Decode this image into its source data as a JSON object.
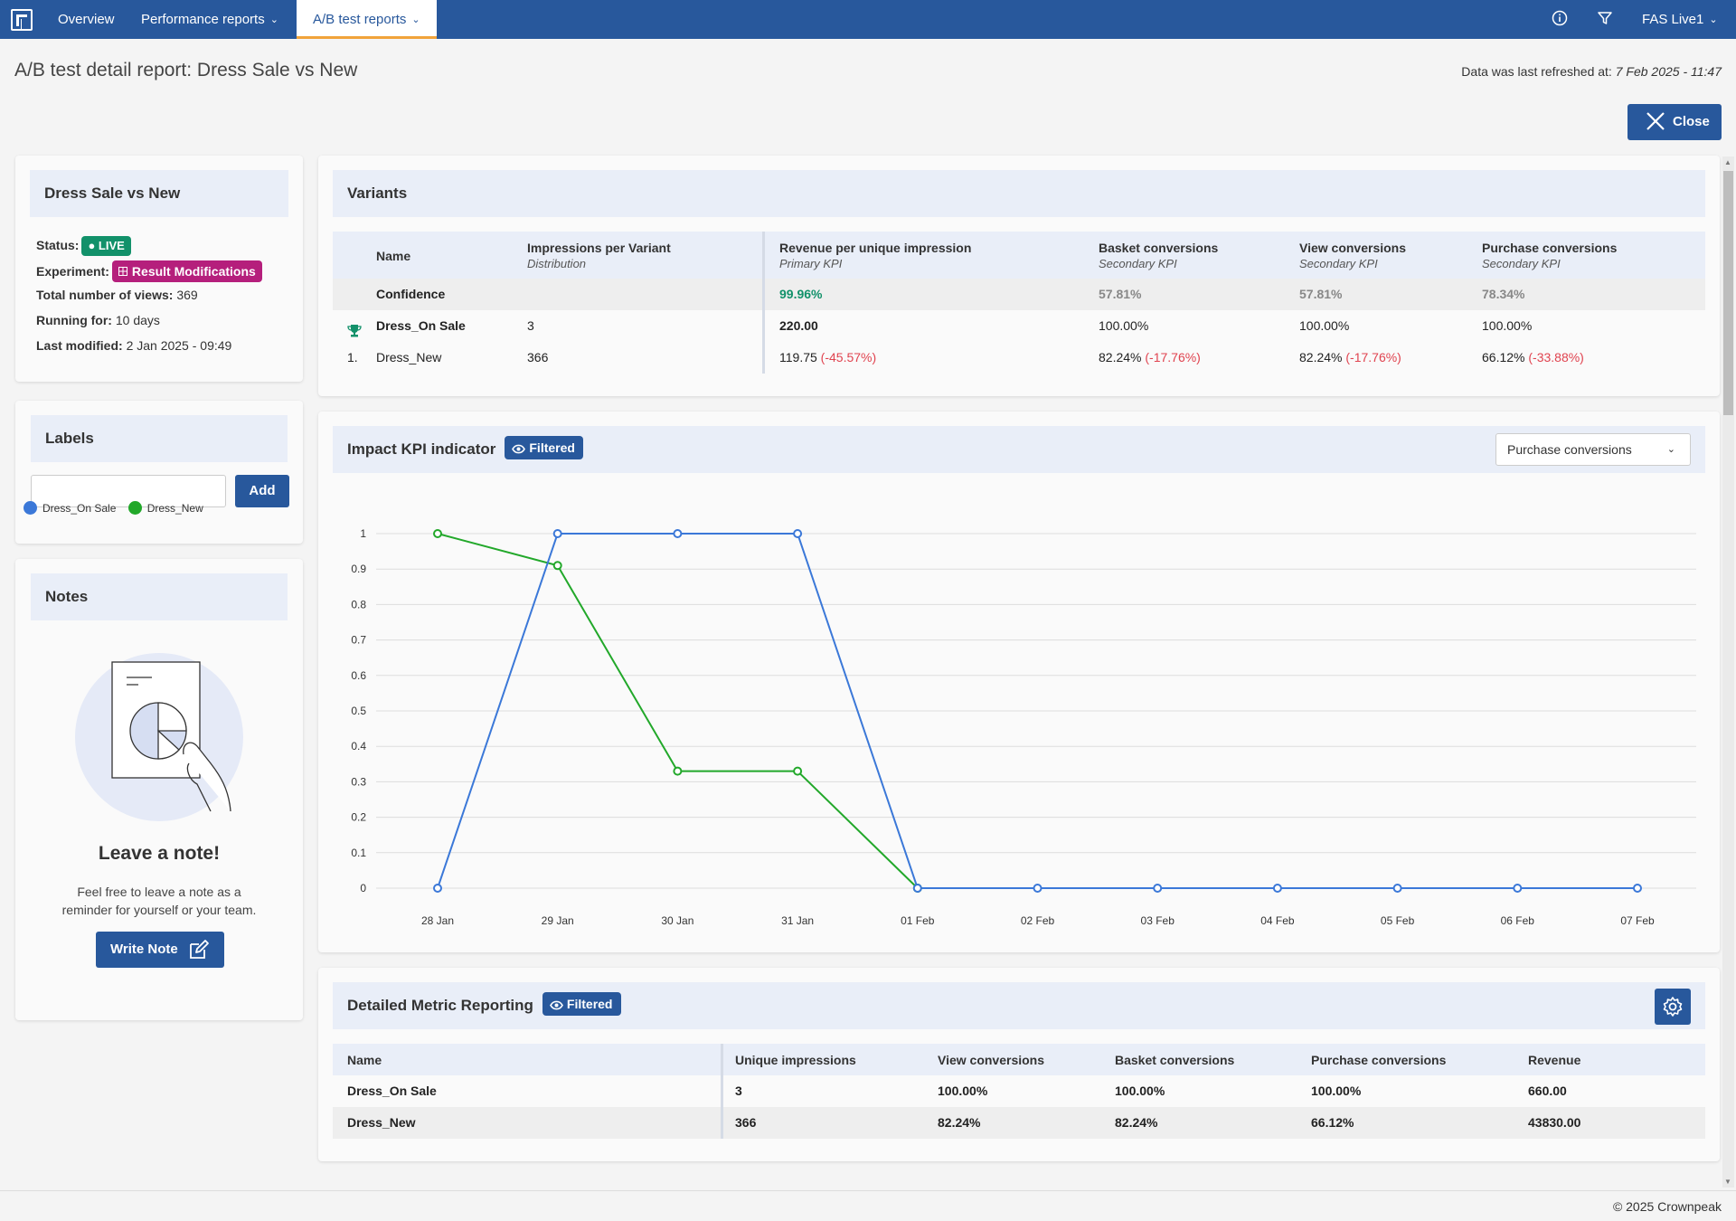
{
  "nav": {
    "tabs": [
      {
        "label": "Overview"
      },
      {
        "label": "Performance reports"
      },
      {
        "label": "A/B test reports"
      }
    ],
    "account": "FAS Live1"
  },
  "page": {
    "title": "A/B test detail report: Dress Sale vs New",
    "refresh_label": "Data was last refreshed at:",
    "refresh_time": "7 Feb 2025 - 11:47",
    "close_label": "Close"
  },
  "summary": {
    "title": "Dress Sale vs New",
    "status_label": "Status:",
    "status_value": "● LIVE",
    "experiment_label": "Experiment:",
    "experiment_value": "Result Modifications",
    "views_label": "Total number of views:",
    "views_value": "369",
    "running_label": "Running for:",
    "running_value": "10 days",
    "modified_label": "Last modified:",
    "modified_value": "2 Jan 2025 - 09:49"
  },
  "labels": {
    "title": "Labels",
    "input_value": "",
    "add_label": "Add"
  },
  "notes": {
    "title": "Notes",
    "heading": "Leave a note!",
    "text_line1": "Feel free to leave a note as a",
    "text_line2": "reminder for yourself or your team.",
    "write_label": "Write Note"
  },
  "variants": {
    "title": "Variants",
    "headers": {
      "name": "Name",
      "impressions": "Impressions per Variant",
      "impressions_sub": "Distribution",
      "revenue": "Revenue per unique impression",
      "revenue_sub": "Primary KPI",
      "basket": "Basket conversions",
      "basket_sub": "Secondary KPI",
      "view": "View conversions",
      "view_sub": "Secondary KPI",
      "purchase": "Purchase conversions",
      "purchase_sub": "Secondary KPI"
    },
    "confidence": {
      "label": "Confidence",
      "revenue": "99.96%",
      "basket": "57.81%",
      "view": "57.81%",
      "purchase": "78.34%"
    },
    "rows": [
      {
        "rank": "",
        "name": "Dress_On Sale",
        "impressions": "3",
        "revenue": "220.00",
        "revenue_diff": "",
        "basket": "100.00%",
        "basket_diff": "",
        "view": "100.00%",
        "view_diff": "",
        "purchase": "100.00%",
        "purchase_diff": ""
      },
      {
        "rank": "1.",
        "name": "Dress_New",
        "impressions": "366",
        "revenue": "119.75",
        "revenue_diff": "(-45.57%)",
        "basket": "82.24%",
        "basket_diff": "(-17.76%)",
        "view": "82.24%",
        "view_diff": "(-17.76%)",
        "purchase": "66.12%",
        "purchase_diff": "(-33.88%)"
      }
    ]
  },
  "impact": {
    "title": "Impact KPI indicator",
    "filtered_label": "Filtered",
    "select_value": "Purchase conversions"
  },
  "chart_data": {
    "type": "line",
    "x": [
      "28 Jan",
      "29 Jan",
      "30 Jan",
      "31 Jan",
      "01 Feb",
      "02 Feb",
      "03 Feb",
      "04 Feb",
      "05 Feb",
      "06 Feb",
      "07 Feb"
    ],
    "y_ticks": [
      "0",
      "0.1",
      "0.2",
      "0.3",
      "0.4",
      "0.5",
      "0.6",
      "0.7",
      "0.8",
      "0.9",
      "1"
    ],
    "ylim": [
      0,
      1
    ],
    "grid": true,
    "legend_position": "top-left",
    "series": [
      {
        "name": "Dress_On Sale",
        "color": "#3b78d8",
        "values": [
          0,
          1,
          1,
          1,
          0,
          0,
          0,
          0,
          0,
          0,
          0
        ]
      },
      {
        "name": "Dress_New",
        "color": "#22a82a",
        "values": [
          1,
          0.91,
          0.33,
          0.33,
          0,
          null,
          null,
          null,
          null,
          null,
          null
        ]
      }
    ]
  },
  "detailed": {
    "title": "Detailed Metric Reporting",
    "filtered_label": "Filtered",
    "headers": [
      "Name",
      "Unique impressions",
      "View conversions",
      "Basket conversions",
      "Purchase conversions",
      "Revenue"
    ],
    "rows": [
      [
        "Dress_On Sale",
        "3",
        "100.00%",
        "100.00%",
        "100.00%",
        "660.00"
      ],
      [
        "Dress_New",
        "366",
        "82.24%",
        "82.24%",
        "66.12%",
        "43830.00"
      ]
    ]
  },
  "footer": {
    "copyright": "© 2025 Crownpeak"
  }
}
